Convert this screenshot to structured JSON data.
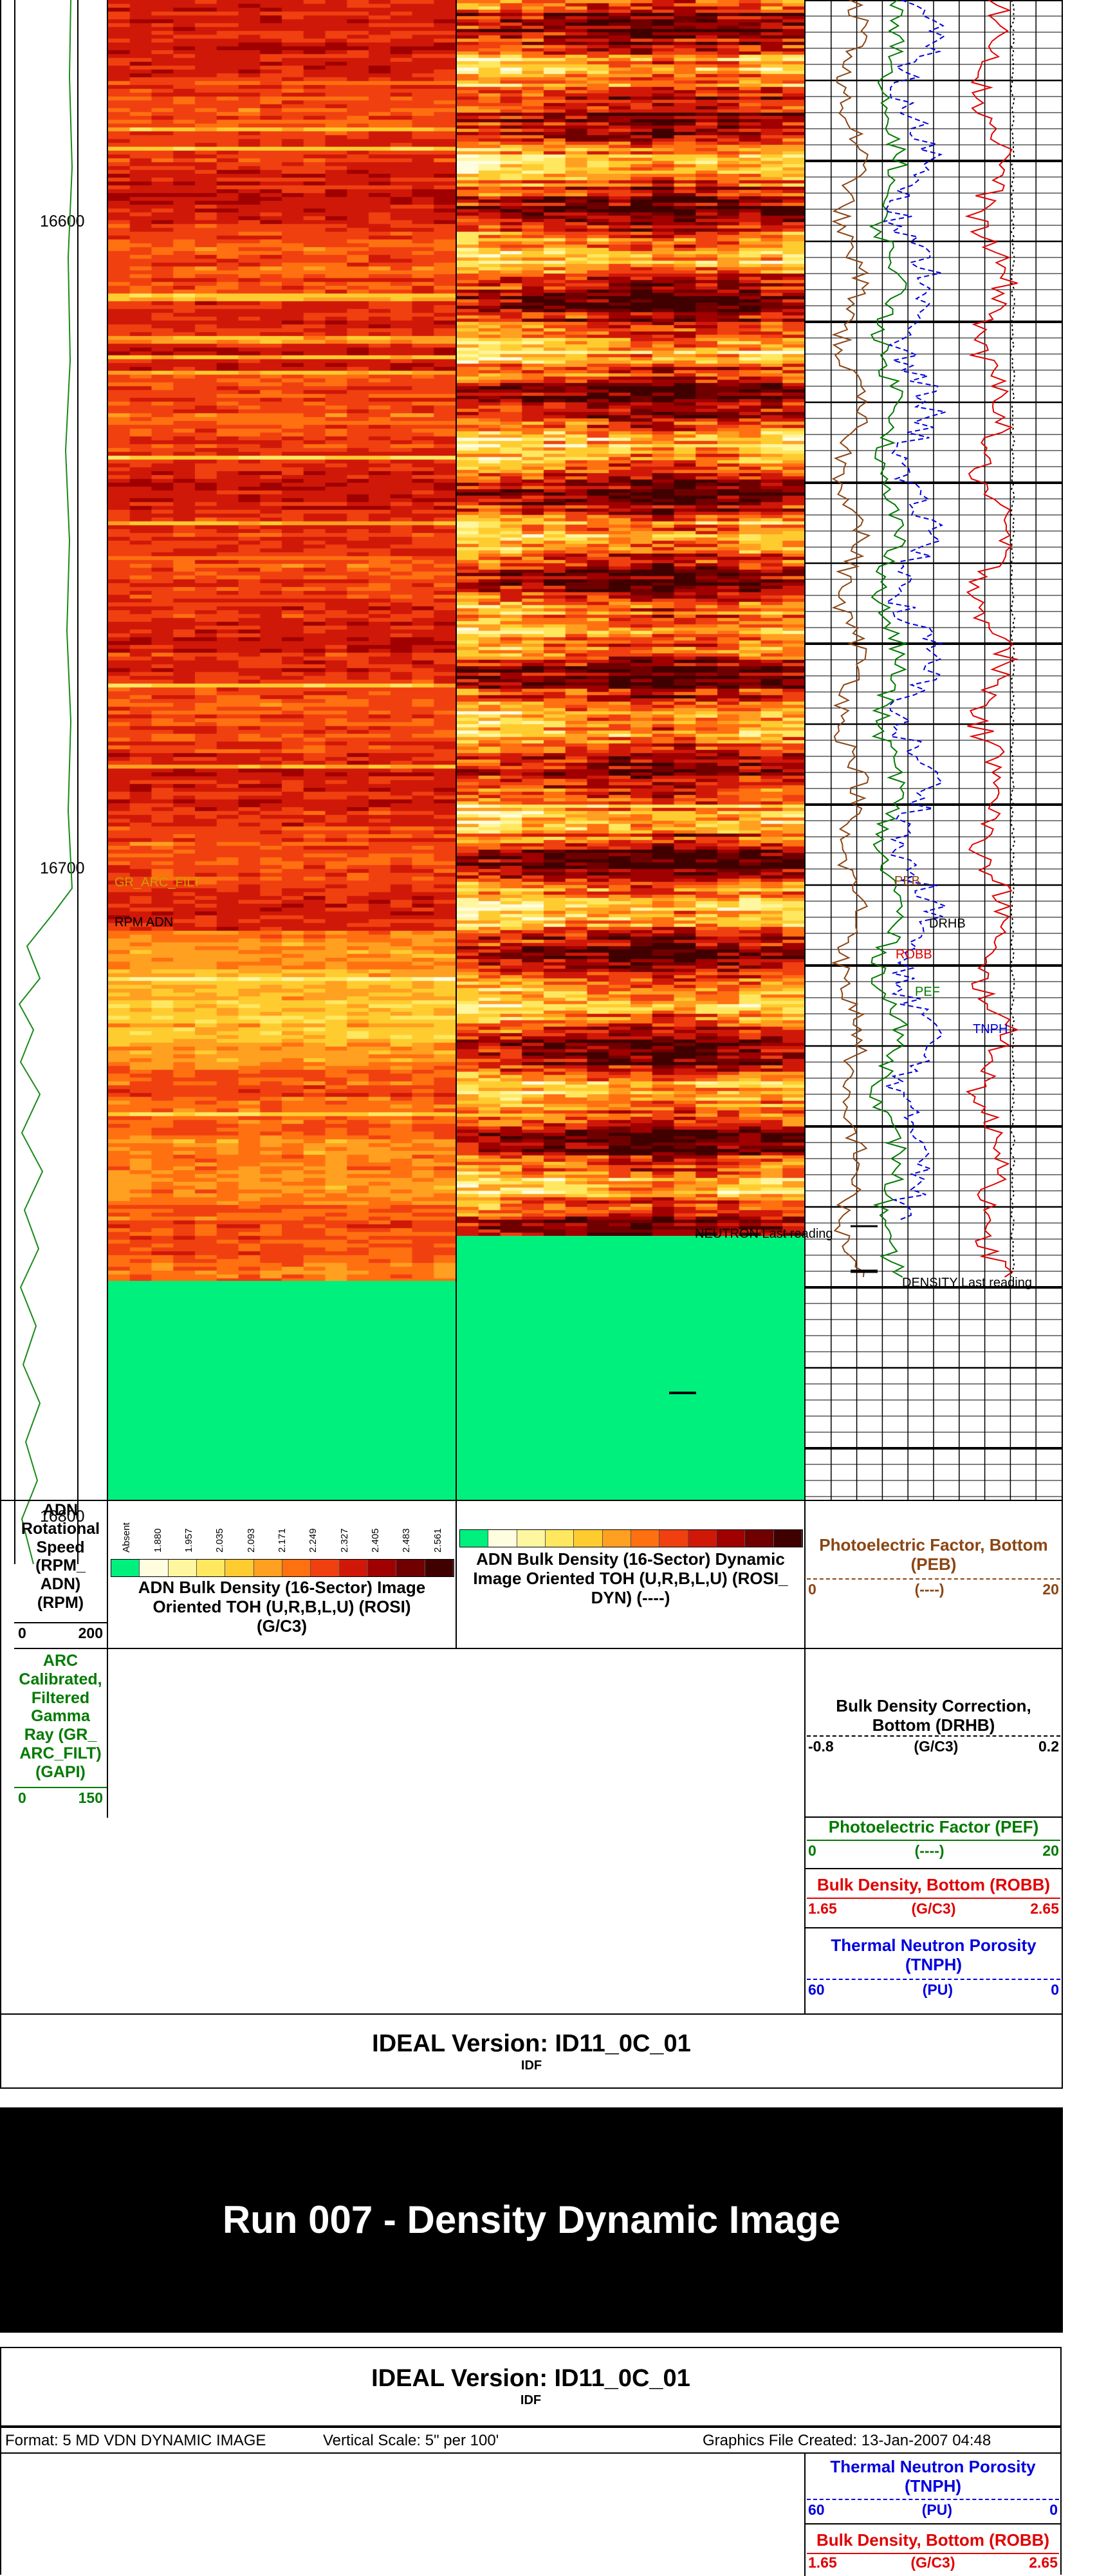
{
  "depth_labels": [
    "16600",
    "16700",
    "16800"
  ],
  "curve_annotations": {
    "gr_arc_filt": "GR_ARC_FILT",
    "rpm_adn": "RPM ADN",
    "peb": "PEB",
    "drhb": "DRHB",
    "robb": "ROBB",
    "pef": "PEF",
    "tnph": "TNPH",
    "neutron_last": "NEUTRON Last reading",
    "density_last": "DENSITY Last reading"
  },
  "legends": {
    "rpm": {
      "title": "ADN Rotational Speed (RPM_ ADN) (RPM)",
      "left": "0",
      "right": "200",
      "color": "#000000"
    },
    "gr": {
      "title": "ARC Calibrated, Filtered Gamma Ray (GR_ ARC_FILT) (GAPI)",
      "left": "0",
      "right": "150",
      "color": "#007a00"
    },
    "rosi": {
      "title": "ADN Bulk Density (16-Sector) Image Oriented TOH (U,R,B,L,U) (ROSI) (G/C3)",
      "ticks": [
        "Absent",
        "1.880",
        "1.957",
        "2.035",
        "2.093",
        "2.171",
        "2.249",
        "2.327",
        "2.405",
        "2.483",
        "2.561"
      ]
    },
    "rosi_dyn": {
      "title": "ADN Bulk Density (16-Sector) Dynamic Image Oriented TOH (U,R,B,L,U) (ROSI_ DYN) (----)"
    },
    "peb": {
      "title": "Photoelectric Factor, Bottom (PEB)",
      "left": "0",
      "unit": "(----)",
      "right": "20",
      "color": "#8b4513"
    },
    "drhb": {
      "title": "Bulk Density Correction, Bottom (DRHB)",
      "left": "-0.8",
      "unit": "(G/C3)",
      "right": "0.2",
      "color": "#000000"
    },
    "pef": {
      "title": "Photoelectric Factor (PEF)",
      "left": "0",
      "unit": "(----)",
      "right": "20",
      "color": "#007a00"
    },
    "robb": {
      "title": "Bulk Density, Bottom (ROBB)",
      "left": "1.65",
      "unit": "(G/C3)",
      "right": "2.65",
      "color": "#e00000"
    },
    "tnph": {
      "title": "Thermal Neutron Porosity (TNPH)",
      "left": "60",
      "unit": "(PU)",
      "right": "0",
      "color": "#0000e0"
    }
  },
  "footer1": {
    "version": "IDEAL Version: ID11_0C_01",
    "sub": "IDF"
  },
  "banner": {
    "title": "Run 007 - Density Dynamic Image"
  },
  "header2": {
    "version": "IDEAL Version: ID11_0C_01",
    "sub": "IDF",
    "format": "Format: 5 MD VDN DYNAMIC IMAGE",
    "scale": "Vertical Scale:   5\" per 100'",
    "created": "Graphics File Created:  13-Jan-2007 04:48"
  },
  "colors": {
    "image_green": "#00f07e",
    "rpm_curve": "#1a8a1a",
    "banner_bg": "#000000",
    "banner_text": "#ffffff"
  }
}
